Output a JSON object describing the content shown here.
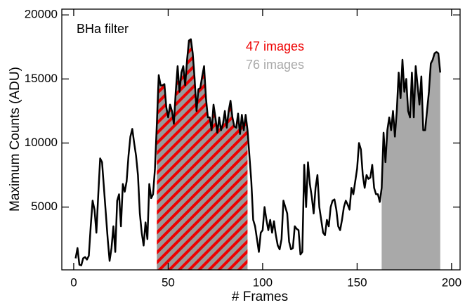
{
  "chart_data": {
    "type": "line",
    "annotation": "BHa filter",
    "xlabel": "# Frames",
    "ylabel": "Maximum Counts (ADU)",
    "xlim": [
      -6.3,
      204.5
    ],
    "ylim": [
      100,
      20450
    ],
    "xticks": [
      0,
      50,
      100,
      150,
      200
    ],
    "yticks": [
      5000,
      10000,
      15000,
      20000
    ],
    "color": "#000000",
    "regions": [
      {
        "name": "47 images",
        "color": "#ee0000",
        "start": 44,
        "end": 92,
        "hatch": true
      },
      {
        "name": "76 images",
        "color": "#a9a9a9",
        "start": 163,
        "end": 194,
        "hatch": false
      }
    ],
    "x": [
      1,
      2,
      3,
      4,
      5,
      6,
      7,
      8,
      9,
      10,
      11,
      12,
      13,
      14,
      15,
      16,
      17,
      18,
      19,
      20,
      21,
      22,
      23,
      24,
      25,
      26,
      27,
      28,
      29,
      30,
      31,
      32,
      33,
      34,
      35,
      36,
      37,
      38,
      39,
      40,
      41,
      42,
      43,
      44,
      45,
      46,
      47,
      48,
      49,
      50,
      51,
      52,
      53,
      54,
      55,
      56,
      57,
      58,
      59,
      60,
      61,
      62,
      63,
      64,
      65,
      66,
      67,
      68,
      69,
      70,
      71,
      72,
      73,
      74,
      75,
      76,
      77,
      78,
      79,
      80,
      81,
      82,
      83,
      84,
      85,
      86,
      87,
      88,
      89,
      90,
      91,
      92,
      93,
      94,
      95,
      96,
      97,
      98,
      99,
      100,
      101,
      102,
      103,
      104,
      105,
      106,
      107,
      108,
      109,
      110,
      111,
      112,
      113,
      114,
      115,
      116,
      117,
      118,
      119,
      120,
      121,
      122,
      123,
      124,
      125,
      126,
      127,
      128,
      129,
      130,
      131,
      132,
      133,
      134,
      135,
      136,
      137,
      138,
      139,
      140,
      141,
      142,
      143,
      144,
      145,
      146,
      147,
      148,
      149,
      150,
      151,
      152,
      153,
      154,
      155,
      156,
      157,
      158,
      159,
      160,
      161,
      162,
      163,
      164,
      165,
      166,
      167,
      168,
      169,
      170,
      171,
      172,
      173,
      174,
      175,
      176,
      177,
      178,
      179,
      180,
      181,
      182,
      183,
      184,
      185,
      186,
      187,
      188,
      189,
      190,
      191,
      192,
      193,
      194
    ],
    "values": [
      1000,
      1800,
      500,
      450,
      1000,
      1100,
      900,
      1200,
      3500,
      5500,
      4800,
      3000,
      6000,
      8800,
      8500,
      6500,
      4500,
      2500,
      800,
      1800,
      3500,
      1500,
      5500,
      6000,
      3500,
      6800,
      6200,
      7000,
      9000,
      10500,
      11100,
      10000,
      9000,
      7500,
      4500,
      3000,
      2000,
      3800,
      2500,
      6800,
      5700,
      6000,
      8000,
      11500,
      15300,
      14500,
      14500,
      14600,
      12800,
      12000,
      13000,
      12500,
      11500,
      14000,
      16000,
      14000,
      15500,
      16000,
      14500,
      16500,
      18000,
      18100,
      17000,
      15000,
      12500,
      14200,
      14300,
      15200,
      16000,
      13500,
      12000,
      12000,
      11000,
      13000,
      12000,
      10800,
      12000,
      11000,
      11500,
      12500,
      11200,
      12500,
      13300,
      12000,
      11300,
      11200,
      12300,
      10700,
      12200,
      11000,
      12200,
      11000,
      9000,
      7000,
      4000,
      3500,
      2500,
      1500,
      3000,
      3200,
      5000,
      4000,
      3200,
      4000,
      3000,
      3900,
      2800,
      2000,
      1700,
      2500,
      5500,
      5000,
      4500,
      2300,
      1700,
      1800,
      3500,
      3300,
      3200,
      1300,
      1500,
      8300,
      5000,
      8500,
      6800,
      5800,
      4500,
      6500,
      7500,
      5000,
      4000,
      3000,
      2800,
      4000,
      3500,
      5000,
      5500,
      5600,
      4800,
      3500,
      3200,
      4000,
      5000,
      5500,
      5200,
      4800,
      6500,
      6000,
      7000,
      8000,
      10000,
      9500,
      7500,
      6500,
      7500,
      7200,
      7300,
      8300,
      6500,
      6000,
      6000,
      5400,
      6500,
      10800,
      8500,
      11000,
      12000,
      11000,
      12500,
      10500,
      12500,
      15500,
      13500,
      16500,
      14000,
      15000,
      12500,
      12000,
      15500,
      12000,
      16000,
      14500,
      13000,
      15200,
      11000,
      11000,
      12500,
      14000,
      16200,
      16500,
      17000,
      17100,
      17000,
      15500
    ]
  }
}
